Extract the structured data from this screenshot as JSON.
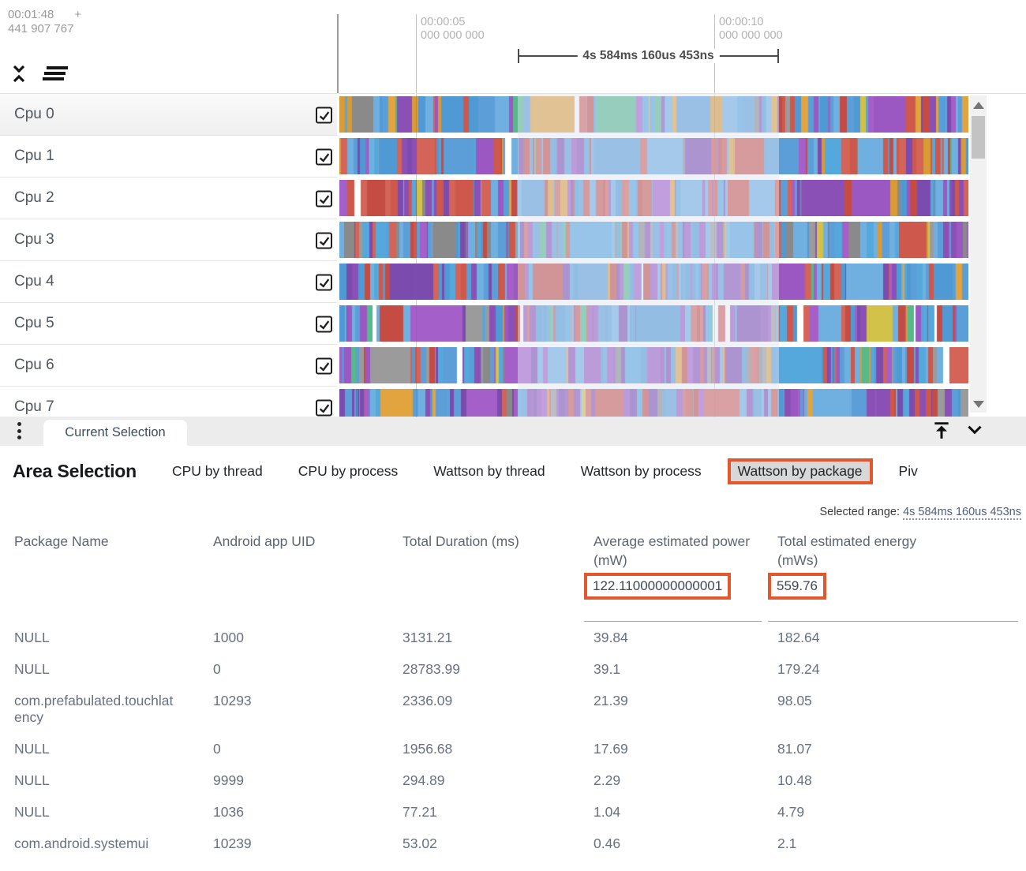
{
  "ruler": {
    "offset_time": "00:01:48",
    "offset_plus": "+",
    "offset_ns": "441 907 767",
    "ticks": [
      {
        "time": "00:00:05",
        "ns": "000 000 000"
      },
      {
        "time": "00:00:10",
        "ns": "000 000 000"
      }
    ],
    "selection_duration": "4s 584ms 160us 453ns"
  },
  "tracks": {
    "rows": [
      {
        "label": "Cpu 0",
        "checked": true
      },
      {
        "label": "Cpu 1",
        "checked": true
      },
      {
        "label": "Cpu 2",
        "checked": true
      },
      {
        "label": "Cpu 3",
        "checked": true
      },
      {
        "label": "Cpu 4",
        "checked": true
      },
      {
        "label": "Cpu 5",
        "checked": true
      },
      {
        "label": "Cpu 6",
        "checked": true
      },
      {
        "label": "Cpu 7",
        "checked": true
      }
    ],
    "palette": {
      "blue": [
        "#5C9FD8",
        "#55A8DC",
        "#6FB0E0",
        "#4F9AD4"
      ],
      "purple": [
        "#9C58C2",
        "#8B50B6",
        "#A55FC8",
        "#7B4BAE"
      ],
      "red": [
        "#CE584C",
        "#D46458",
        "#C44C42"
      ],
      "orange": [
        "#E2A43E",
        "#D99B35"
      ],
      "gray": [
        "#9B9B9B",
        "#8A8A8A"
      ],
      "green": [
        "#55B98A"
      ],
      "yellow": [
        "#D3C24A"
      ],
      "white": [
        "#FFFFFF"
      ]
    }
  },
  "bottom_bar": {
    "current_tab": "Current Selection"
  },
  "panel": {
    "title": "Area Selection",
    "tabs": [
      {
        "label": "CPU by thread",
        "active": false
      },
      {
        "label": "CPU by process",
        "active": false
      },
      {
        "label": "Wattson by thread",
        "active": false
      },
      {
        "label": "Wattson by process",
        "active": false
      },
      {
        "label": "Wattson by package",
        "active": true
      },
      {
        "label": "Piv",
        "active": false
      }
    ],
    "selected_range_label": "Selected range:",
    "selected_range_value": "4s 584ms 160us 453ns",
    "table": {
      "columns": [
        "Package Name",
        "Android app UID",
        "Total Duration (ms)",
        "Average estimated power (mW)",
        "Total estimated energy (mWs)"
      ],
      "summary": {
        "avg_power": "122.11000000000001",
        "total_energy": "559.76"
      },
      "rows": [
        {
          "package": "NULL",
          "uid": "1000",
          "duration": "3131.21",
          "power": "39.84",
          "energy": "182.64"
        },
        {
          "package": "NULL",
          "uid": "0",
          "duration": "28783.99",
          "power": "39.1",
          "energy": "179.24"
        },
        {
          "package": "com.prefabulated.touchlatency",
          "uid": "10293",
          "duration": "2336.09",
          "power": "21.39",
          "energy": "98.05"
        },
        {
          "package": "NULL",
          "uid": "0",
          "duration": "1956.68",
          "power": "17.69",
          "energy": "81.07"
        },
        {
          "package": "NULL",
          "uid": "9999",
          "duration": "294.89",
          "power": "2.29",
          "energy": "10.48"
        },
        {
          "package": "NULL",
          "uid": "1036",
          "duration": "77.21",
          "power": "1.04",
          "energy": "4.79"
        },
        {
          "package": "com.android.systemui",
          "uid": "10239",
          "duration": "53.02",
          "power": "0.46",
          "energy": "2.1"
        }
      ]
    }
  },
  "colors": {
    "highlight_orange": "#E2572E",
    "selection_overlay": "rgba(223,227,244,0.48)",
    "header_text": "#5c6670",
    "cell_text": "#677181"
  }
}
